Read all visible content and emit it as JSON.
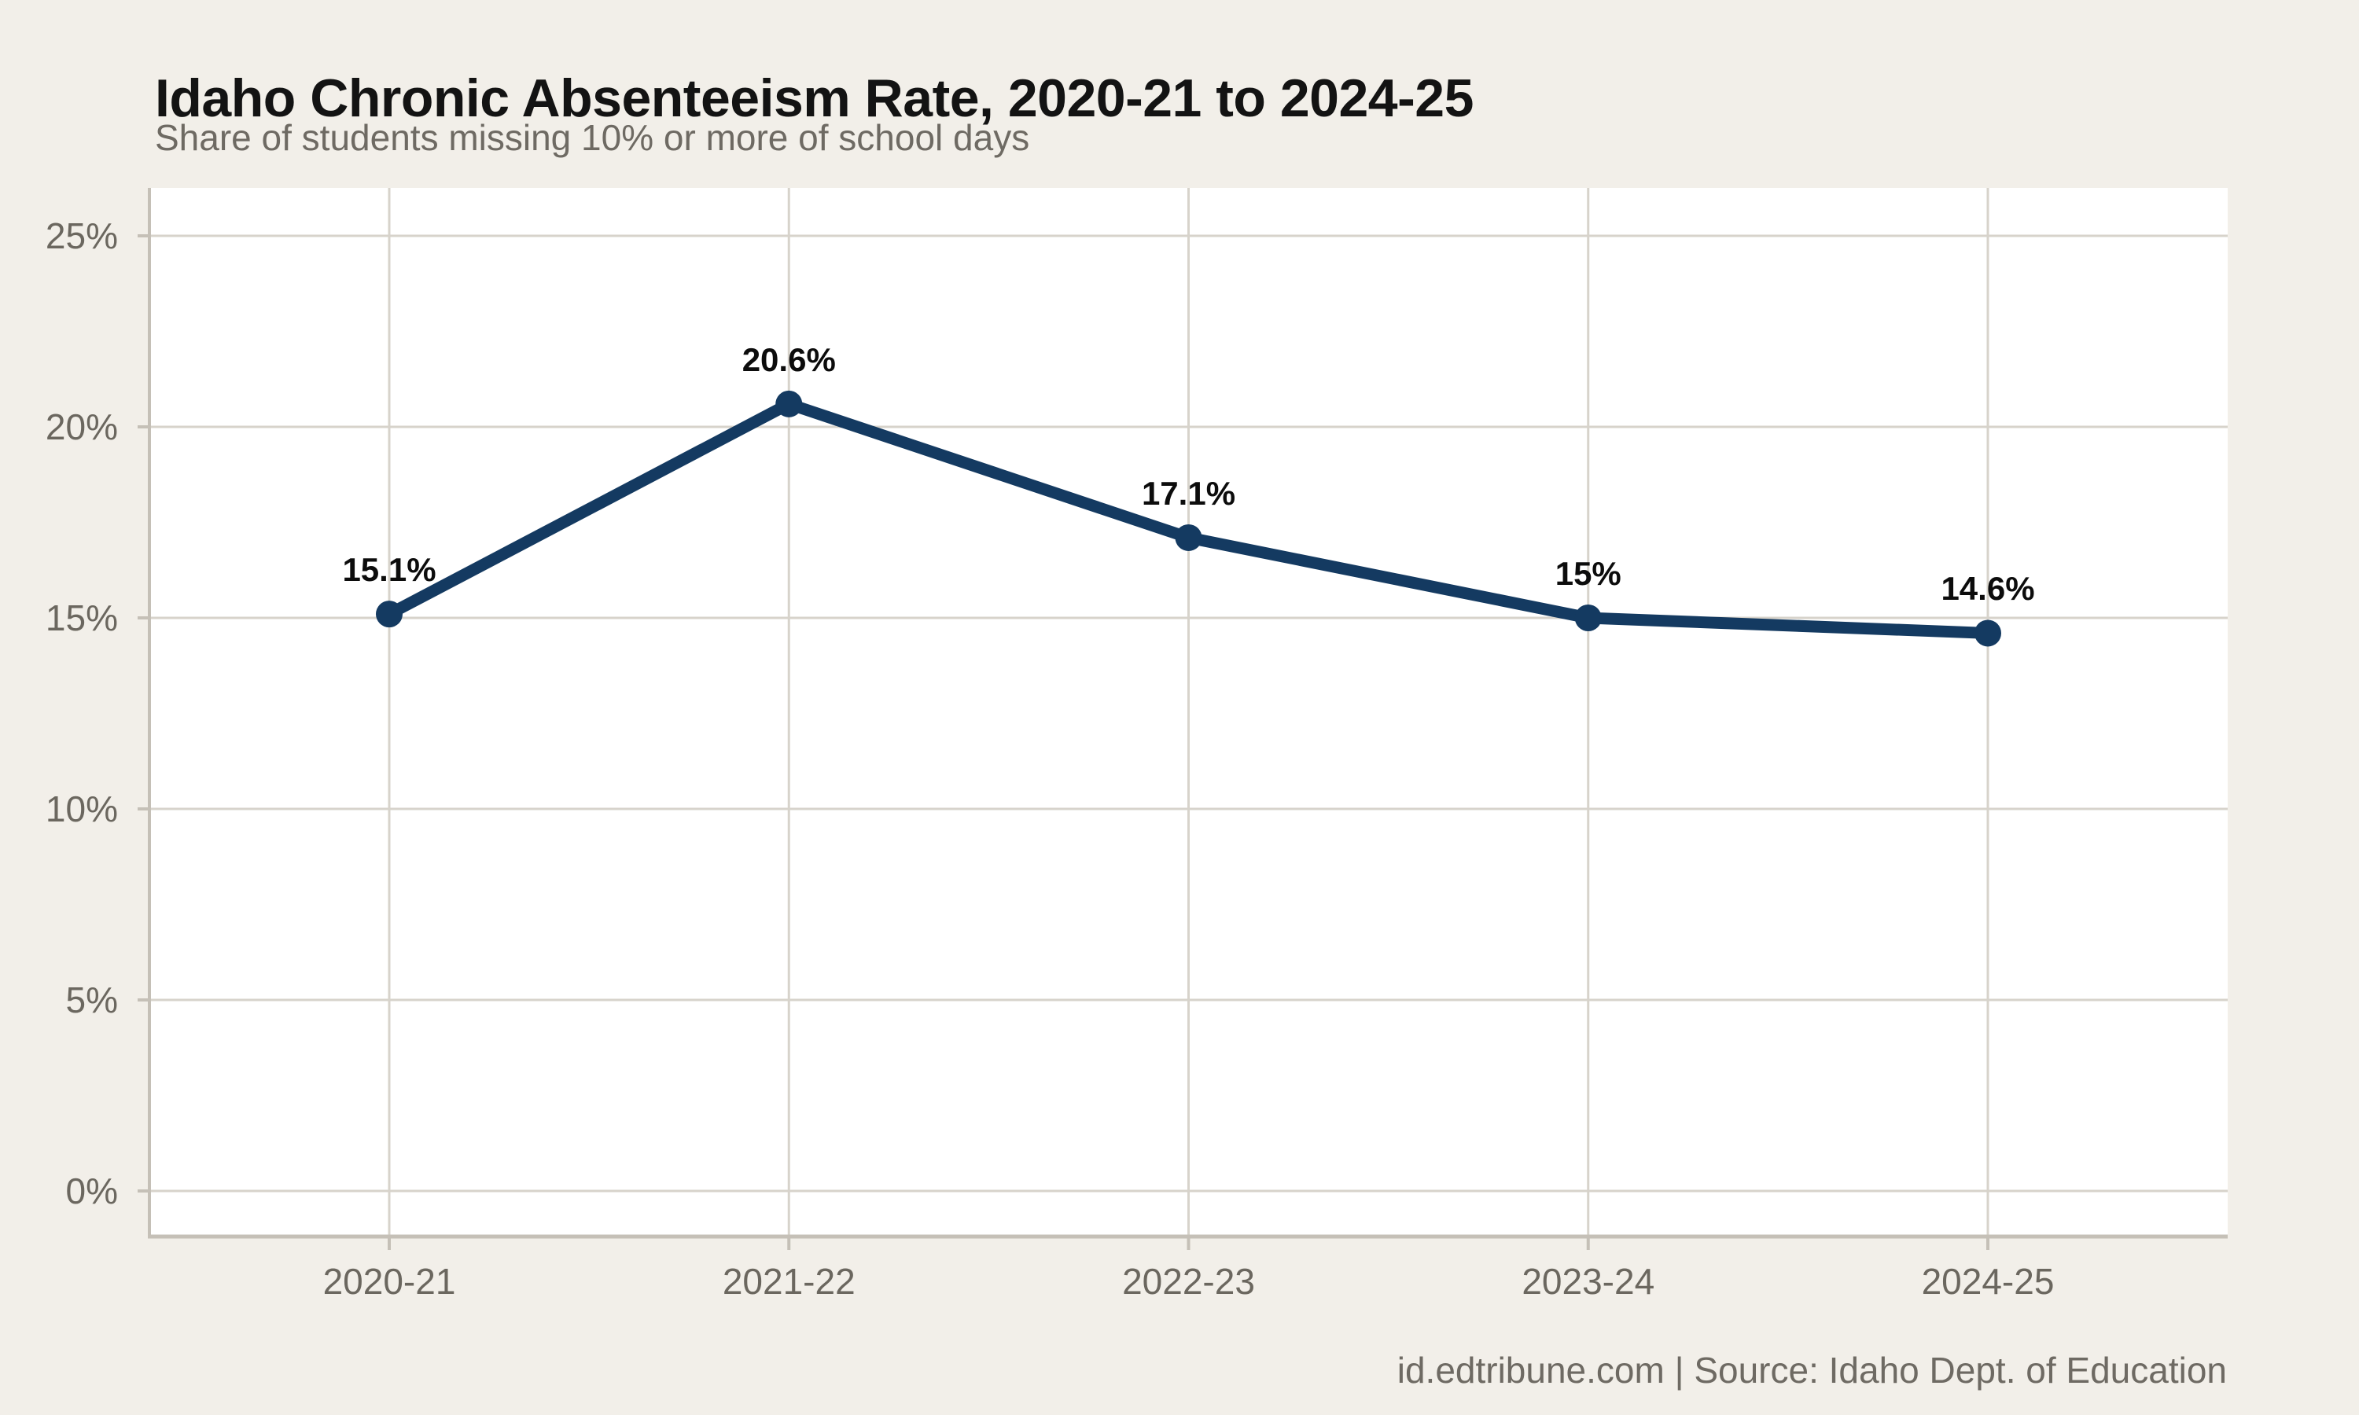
{
  "header": {
    "title": "Idaho Chronic Absenteeism Rate, 2020-21 to 2024-25",
    "subtitle": "Share of students missing 10% or more of school days"
  },
  "footer": {
    "credit": "id.edtribune.com | Source: Idaho Dept. of Education"
  },
  "colors": {
    "background": "#f2efe9",
    "plot_background": "#ffffff",
    "line": "#143a61",
    "marker": "#143a61",
    "grid": "#d7d3cb",
    "axis": "#c5c0b7",
    "title_text": "#131313",
    "muted_text": "#6e6a63",
    "point_label_text": "#0c0c0c"
  },
  "chart_data": {
    "type": "line",
    "title": "Idaho Chronic Absenteeism Rate, 2020-21 to 2024-25",
    "subtitle": "Share of students missing 10% or more of school days",
    "categories": [
      "2020-21",
      "2021-22",
      "2022-23",
      "2023-24",
      "2024-25"
    ],
    "values": [
      15.1,
      20.6,
      17.1,
      15.0,
      14.6
    ],
    "point_labels": [
      "15.1%",
      "20.6%",
      "17.1%",
      "15%",
      "14.6%"
    ],
    "y_tick_values": [
      0,
      5,
      10,
      15,
      20,
      25
    ],
    "y_tick_labels": [
      "0%",
      "5%",
      "10%",
      "15%",
      "20%",
      "25%"
    ],
    "ylim": [
      0,
      25
    ],
    "xlabel": "",
    "ylabel": "",
    "grid": true,
    "legend": false
  }
}
